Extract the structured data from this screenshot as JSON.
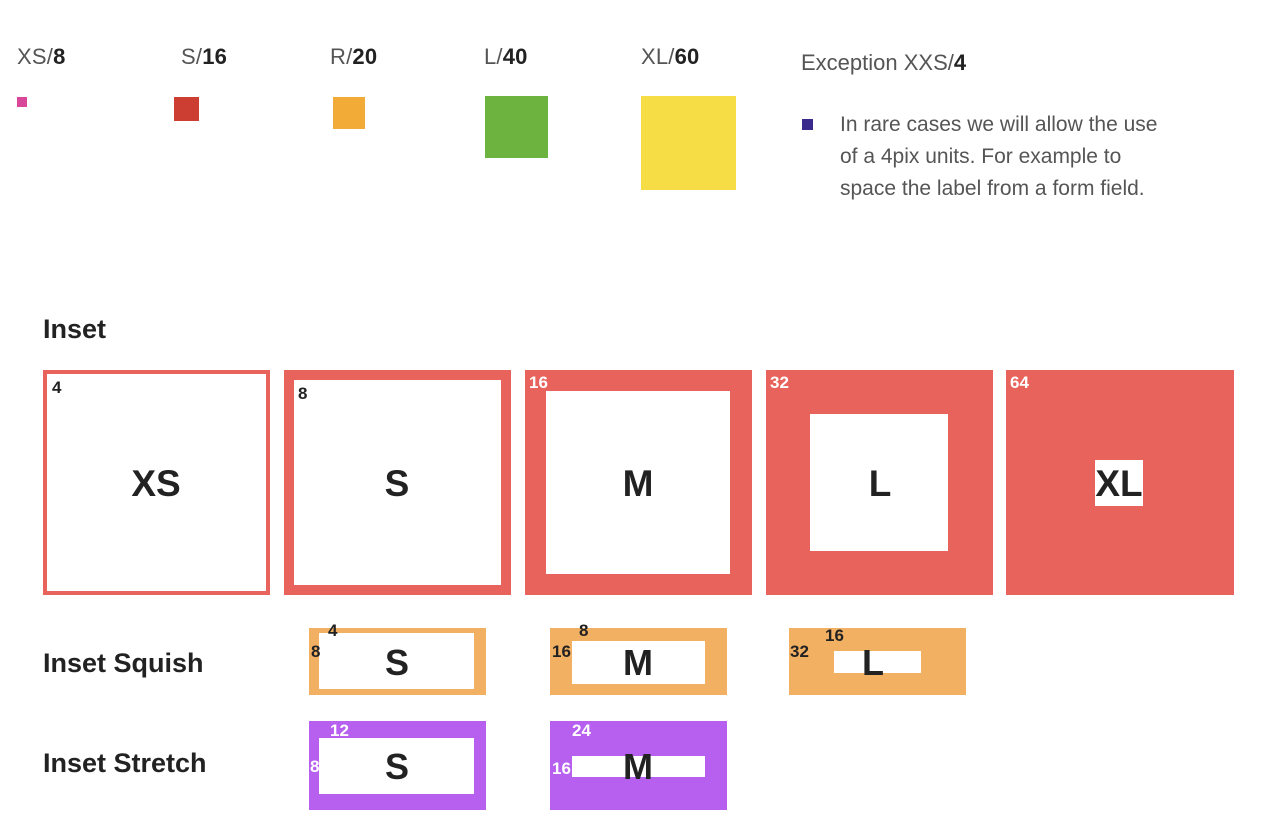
{
  "scale": [
    {
      "name": "XS/",
      "value": "8",
      "color": "#d9479b"
    },
    {
      "name": "S/",
      "value": "16",
      "color": "#cc3e31"
    },
    {
      "name": "R/",
      "value": "20",
      "color": "#f2ab37"
    },
    {
      "name": "L/",
      "value": "40",
      "color": "#6db33f"
    },
    {
      "name": "XL/",
      "value": "60",
      "color": "#f7dd45"
    }
  ],
  "exception": {
    "title_prefix": "Exception XXS/",
    "title_value": "4",
    "bullet_color": "#3a2a8c",
    "lines": [
      "In rare cases we will allow the use",
      "of a 4pix units. For example to",
      "space the label from a form field."
    ]
  },
  "colors": {
    "inset": "#e8635c",
    "squish": "#f2b062",
    "stretch": "#b760f0"
  },
  "inset": {
    "label": "Inset",
    "items": [
      {
        "size": "XS",
        "value": "4"
      },
      {
        "size": "S",
        "value": "8"
      },
      {
        "size": "M",
        "value": "16"
      },
      {
        "size": "L",
        "value": "32"
      },
      {
        "size": "XL",
        "value": "64"
      }
    ]
  },
  "squish": {
    "label": "Inset Squish",
    "items": [
      {
        "size": "S",
        "top": "4",
        "left": "8"
      },
      {
        "size": "M",
        "top": "8",
        "left": "16"
      },
      {
        "size": "L",
        "top": "16",
        "left": "32"
      }
    ]
  },
  "stretch": {
    "label": "Inset Stretch",
    "items": [
      {
        "size": "S",
        "top": "12",
        "left": "8"
      },
      {
        "size": "M",
        "top": "24",
        "left": "16"
      }
    ]
  }
}
